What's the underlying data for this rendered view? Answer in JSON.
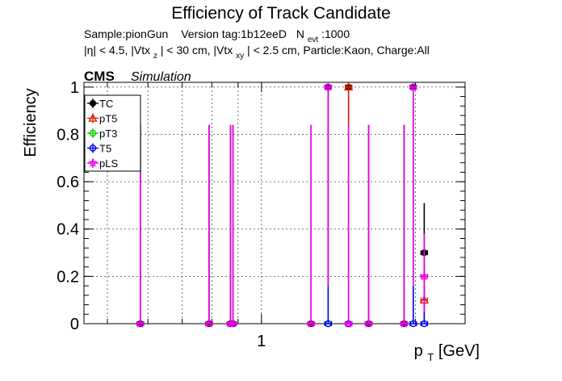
{
  "header": {
    "title": "Efficiency of Track Candidate",
    "subtitle_line1": {
      "sample": "Sample:pionGun",
      "version": "Version tag:1b12eeD",
      "nevt_prefix": "N",
      "nevt_sub": "evt",
      "nevt_value": ":1000"
    },
    "subtitle_line2": {
      "eta": "|η| < 4.5, |Vtx",
      "z_sub": "z",
      "mid": "| < 30 cm, |Vtx",
      "xy_sub": "xy",
      "rest": "| < 2.5 cm, Particle:Kaon, Charge:All"
    },
    "cms": "CMS",
    "simulation": "Simulation"
  },
  "chart_data": {
    "type": "scatter",
    "title": "Efficiency of Track Candidate",
    "xlabel_main": "p",
    "xlabel_sub": "T",
    "xlabel_unit": " [GeV]",
    "ylabel": "Efficiency",
    "x_scale": "log",
    "xlim": [
      0.45,
      2.5
    ],
    "ylim": [
      0,
      1.02
    ],
    "x_ticks": [
      {
        "v": 1,
        "label": "1"
      }
    ],
    "y_ticks": [
      {
        "v": 0,
        "label": "0"
      },
      {
        "v": 0.2,
        "label": "0.2"
      },
      {
        "v": 0.4,
        "label": "0.4"
      },
      {
        "v": 0.6,
        "label": "0.6"
      },
      {
        "v": 0.8,
        "label": "0.8"
      },
      {
        "v": 1,
        "label": "1"
      }
    ],
    "grid": true,
    "legend_position": "top-left",
    "series": [
      {
        "name": "TC",
        "color": "#000000",
        "marker": "circle-filled",
        "points": [
          {
            "x": 0.58,
            "y": 0,
            "ylo": 0,
            "yhi": 0.84
          },
          {
            "x": 0.79,
            "y": 0,
            "ylo": 0,
            "yhi": 0.84
          },
          {
            "x": 0.87,
            "y": 0,
            "ylo": 0,
            "yhi": 0.84
          },
          {
            "x": 0.88,
            "y": 0,
            "ylo": 0,
            "yhi": 0.84
          },
          {
            "x": 1.25,
            "y": 0,
            "ylo": 0,
            "yhi": 0.84
          },
          {
            "x": 1.35,
            "y": 1,
            "ylo": 0.16,
            "yhi": 1
          },
          {
            "x": 1.48,
            "y": 1,
            "ylo": 0.16,
            "yhi": 1
          },
          {
            "x": 1.62,
            "y": 0,
            "ylo": 0,
            "yhi": 0.84
          },
          {
            "x": 1.9,
            "y": 0,
            "ylo": 0,
            "yhi": 0.84
          },
          {
            "x": 1.98,
            "y": 1,
            "ylo": 0.16,
            "yhi": 1
          },
          {
            "x": 2.08,
            "y": 0.3,
            "ylo": 0.12,
            "yhi": 0.51
          }
        ]
      },
      {
        "name": "pT5",
        "color": "#dd2200",
        "marker": "triangle-open",
        "points": [
          {
            "x": 1.48,
            "y": 1,
            "ylo": 0.84,
            "yhi": 1
          },
          {
            "x": 2.08,
            "y": 0.1,
            "ylo": 0.02,
            "yhi": 0.26
          }
        ]
      },
      {
        "name": "pT3",
        "color": "#00cc00",
        "marker": "circle-open",
        "points": [
          {
            "x": 1.35,
            "y": 0,
            "ylo": 0,
            "yhi": 0.01
          }
        ]
      },
      {
        "name": "T5",
        "color": "#0000ee",
        "marker": "circle-open",
        "points": [
          {
            "x": 1.35,
            "y": 0,
            "ylo": 0,
            "yhi": 0.16
          },
          {
            "x": 1.48,
            "y": 0,
            "ylo": 0,
            "yhi": 0.16
          },
          {
            "x": 1.98,
            "y": 0,
            "ylo": 0,
            "yhi": 0.16
          },
          {
            "x": 2.08,
            "y": 0,
            "ylo": 0,
            "yhi": 0.16
          }
        ]
      },
      {
        "name": "pLS",
        "color": "#ee00ee",
        "marker": "star",
        "points": [
          {
            "x": 0.58,
            "y": 0,
            "ylo": 0,
            "yhi": 0.84
          },
          {
            "x": 0.79,
            "y": 0,
            "ylo": 0,
            "yhi": 0.84
          },
          {
            "x": 0.87,
            "y": 0,
            "ylo": 0,
            "yhi": 0.84
          },
          {
            "x": 0.88,
            "y": 0,
            "ylo": 0,
            "yhi": 0.84
          },
          {
            "x": 1.25,
            "y": 0,
            "ylo": 0,
            "yhi": 0.84
          },
          {
            "x": 1.35,
            "y": 1,
            "ylo": 0.16,
            "yhi": 1
          },
          {
            "x": 1.48,
            "y": 0,
            "ylo": 0,
            "yhi": 0.84
          },
          {
            "x": 1.62,
            "y": 0,
            "ylo": 0,
            "yhi": 0.84
          },
          {
            "x": 1.9,
            "y": 0,
            "ylo": 0,
            "yhi": 0.84
          },
          {
            "x": 1.98,
            "y": 1,
            "ylo": 0.16,
            "yhi": 1
          },
          {
            "x": 2.08,
            "y": 0.2,
            "ylo": 0.05,
            "yhi": 0.38
          }
        ]
      }
    ]
  }
}
